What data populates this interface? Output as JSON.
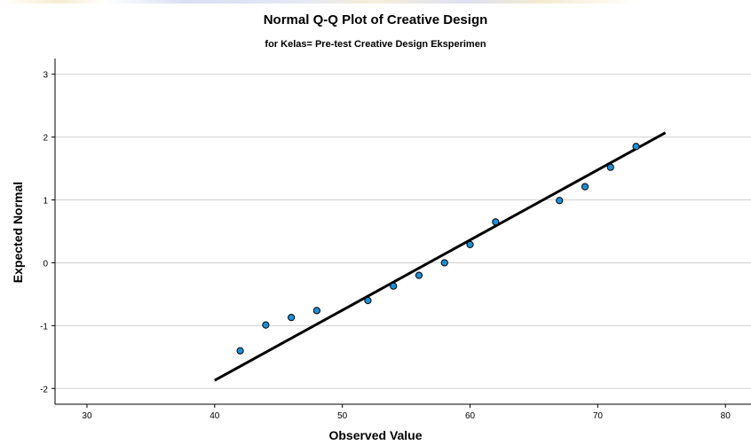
{
  "chart_data": {
    "type": "scatter",
    "title": "Normal Q-Q Plot of Creative Design",
    "subtitle": "for Kelas= Pre-test Creative Design Eksperimen",
    "xlabel": "Observed Value",
    "ylabel": "Expected Normal",
    "xlim": [
      27.5,
      82
    ],
    "ylim": [
      -2.25,
      3.25
    ],
    "xticks": [
      "30",
      "40",
      "50",
      "60",
      "70",
      "80"
    ],
    "yticks": [
      "3",
      "2",
      "1",
      "0",
      "-1",
      "-2"
    ],
    "grid": "horizontal",
    "points": [
      {
        "x": 42,
        "y": -1.4
      },
      {
        "x": 44,
        "y": -0.99
      },
      {
        "x": 46,
        "y": -0.87
      },
      {
        "x": 48,
        "y": -0.76
      },
      {
        "x": 52,
        "y": -0.6
      },
      {
        "x": 54,
        "y": -0.37
      },
      {
        "x": 56,
        "y": -0.2
      },
      {
        "x": 58,
        "y": 0.0
      },
      {
        "x": 60,
        "y": 0.29
      },
      {
        "x": 62,
        "y": 0.65
      },
      {
        "x": 67,
        "y": 0.99
      },
      {
        "x": 69,
        "y": 1.21
      },
      {
        "x": 71,
        "y": 1.52
      },
      {
        "x": 73,
        "y": 1.85
      }
    ],
    "reference_line": {
      "x": [
        40,
        75.3
      ],
      "y": [
        -1.87,
        2.07
      ]
    },
    "colors": {
      "point_fill": "#1f8fd6",
      "point_stroke": "#000000",
      "line": "#000000",
      "grid": "#d0d0d0",
      "axis": "#000000"
    }
  }
}
